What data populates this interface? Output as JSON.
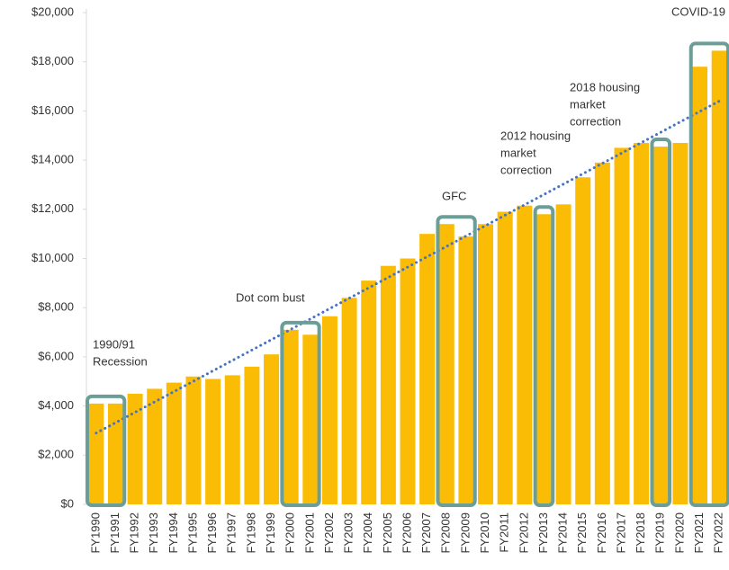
{
  "chart_data": {
    "type": "bar",
    "categories": [
      "FY1990",
      "FY1991",
      "FY1992",
      "FY1993",
      "FY1994",
      "FY1995",
      "FY1996",
      "FY1997",
      "FY1998",
      "FY1999",
      "FY2000",
      "FY2001",
      "FY2002",
      "FY2003",
      "FY2004",
      "FY2005",
      "FY2006",
      "FY2007",
      "FY2008",
      "FY2009",
      "FY2010",
      "FY2011",
      "FY2012",
      "FY2013",
      "FY2014",
      "FY2015",
      "FY2016",
      "FY2017",
      "FY2018",
      "FY2019",
      "FY2020",
      "FY2021",
      "FY2022"
    ],
    "values": [
      4100,
      4100,
      4500,
      4700,
      4950,
      5200,
      5100,
      5250,
      5600,
      6100,
      7100,
      6900,
      7650,
      8400,
      9100,
      9700,
      10000,
      11000,
      11400,
      10900,
      11400,
      11900,
      12150,
      11800,
      12200,
      13300,
      13900,
      14500,
      14700,
      14550,
      14700,
      17800,
      18450
    ],
    "color": "#fbbc05",
    "ylim": [
      0,
      20000
    ],
    "yticks": [
      {
        "value": 0,
        "label": "$0"
      },
      {
        "value": 2000,
        "label": "$2,000"
      },
      {
        "value": 4000,
        "label": "$4,000"
      },
      {
        "value": 6000,
        "label": "$6,000"
      },
      {
        "value": 8000,
        "label": "$8,000"
      },
      {
        "value": 10000,
        "label": "$10,000"
      },
      {
        "value": 12000,
        "label": "$12,000"
      },
      {
        "value": 14000,
        "label": "$14,000"
      },
      {
        "value": 16000,
        "label": "$16,000"
      },
      {
        "value": 18000,
        "label": "$18,000"
      },
      {
        "value": 20000,
        "label": "$20,000"
      }
    ],
    "trendline": {
      "color": "#4472c4",
      "values": [
        2900,
        16400
      ]
    },
    "highlight_color": "#6b9e96",
    "annotations": [
      {
        "lines": [
          "1990/91",
          "Recession"
        ],
        "categories": [
          "FY1990",
          "FY1991"
        ]
      },
      {
        "lines": [
          "Dot com bust"
        ],
        "categories": [
          "FY2000",
          "FY2001"
        ]
      },
      {
        "lines": [
          "GFC"
        ],
        "categories": [
          "FY2008",
          "FY2009"
        ]
      },
      {
        "lines": [
          "2012 housing",
          "market",
          "correction"
        ],
        "categories": [
          "FY2013"
        ]
      },
      {
        "lines": [
          "2018 housing",
          "market",
          "correction"
        ],
        "categories": [
          "FY2019"
        ]
      },
      {
        "lines": [
          "COVID-19"
        ],
        "categories": [
          "FY2021",
          "FY2022"
        ]
      }
    ]
  }
}
